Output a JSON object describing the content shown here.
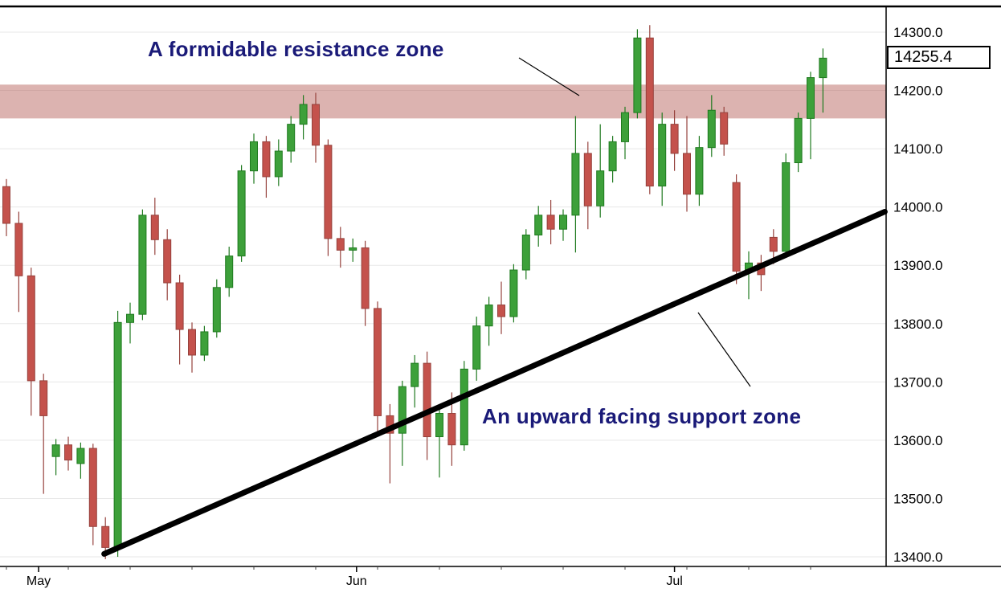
{
  "window": {
    "title": "Candlestick price chart with annotated resistance zone and support trendline"
  },
  "last_price_label": "14255.4",
  "annotations": {
    "resistance_label": "A formidable resistance zone",
    "support_label": "An upward facing support zone"
  },
  "colors": {
    "up": "#3da03a",
    "up_stroke": "#1f7a1f",
    "down": "#c4524c",
    "down_stroke": "#96423d",
    "resistance_band": "rgba(178,86,80,0.45)",
    "trendline": "#000000",
    "annotation_text": "#1a1a78",
    "grid": "#e7e7e7",
    "axis": "#000000"
  },
  "chart_data": {
    "type": "candlestick",
    "title": "",
    "xlabel": "",
    "ylabel": "",
    "x_unit": "daily candles, May through July",
    "y_axis_side": "right",
    "ylim": [
      13370,
      14345
    ],
    "grid": "horizontal-only",
    "y_ticks": [
      "14300.0",
      "14200.0",
      "14100.0",
      "14000.0",
      "13900.0",
      "13800.0",
      "13700.0",
      "13600.0",
      "13500.0",
      "13400.0"
    ],
    "x_ticks": [
      {
        "label": "May",
        "index": 2.6
      },
      {
        "label": "Jun",
        "index": 28.3
      },
      {
        "label": "Jul",
        "index": 54
      }
    ],
    "last_price": 14255.4,
    "resistance_zone": {
      "top": 14210,
      "bottom": 14152
    },
    "support_trendline": {
      "start_index": 7.9,
      "start_price": 13405,
      "end_index": 71,
      "end_price": 13992
    },
    "candle_format": "[open, high, low, close]",
    "candles": [
      [
        14035,
        14048,
        13950,
        13972
      ],
      [
        13972,
        13992,
        13820,
        13882
      ],
      [
        13882,
        13896,
        13642,
        13702
      ],
      [
        13702,
        13714,
        13508,
        13642
      ],
      [
        13572,
        13602,
        13540,
        13592
      ],
      [
        13592,
        13606,
        13548,
        13566
      ],
      [
        13560,
        13596,
        13534,
        13586
      ],
      [
        13586,
        13594,
        13420,
        13452
      ],
      [
        13452,
        13468,
        13396,
        13416
      ],
      [
        13416,
        13822,
        13400,
        13802
      ],
      [
        13802,
        13836,
        13766,
        13816
      ],
      [
        13816,
        13996,
        13806,
        13986
      ],
      [
        13986,
        14016,
        13918,
        13944
      ],
      [
        13944,
        13962,
        13840,
        13870
      ],
      [
        13870,
        13884,
        13730,
        13790
      ],
      [
        13790,
        13802,
        13716,
        13746
      ],
      [
        13746,
        13796,
        13736,
        13786
      ],
      [
        13786,
        13876,
        13776,
        13862
      ],
      [
        13862,
        13932,
        13846,
        13916
      ],
      [
        13916,
        14072,
        13906,
        14062
      ],
      [
        14062,
        14126,
        14040,
        14112
      ],
      [
        14112,
        14122,
        14016,
        14052
      ],
      [
        14052,
        14116,
        14036,
        14096
      ],
      [
        14096,
        14156,
        14076,
        14142
      ],
      [
        14142,
        14192,
        14116,
        14176
      ],
      [
        14176,
        14196,
        14076,
        14106
      ],
      [
        14106,
        14116,
        13916,
        13946
      ],
      [
        13946,
        13966,
        13896,
        13926
      ],
      [
        13926,
        13946,
        13906,
        13930
      ],
      [
        13930,
        13942,
        13796,
        13826
      ],
      [
        13826,
        13838,
        13606,
        13642
      ],
      [
        13642,
        13662,
        13526,
        13612
      ],
      [
        13612,
        13702,
        13556,
        13692
      ],
      [
        13692,
        13746,
        13656,
        13732
      ],
      [
        13732,
        13752,
        13566,
        13606
      ],
      [
        13606,
        13656,
        13536,
        13646
      ],
      [
        13646,
        13682,
        13556,
        13592
      ],
      [
        13592,
        13736,
        13582,
        13722
      ],
      [
        13722,
        13812,
        13702,
        13796
      ],
      [
        13796,
        13846,
        13762,
        13832
      ],
      [
        13832,
        13872,
        13782,
        13812
      ],
      [
        13812,
        13902,
        13802,
        13892
      ],
      [
        13892,
        13962,
        13876,
        13952
      ],
      [
        13952,
        14002,
        13932,
        13986
      ],
      [
        13986,
        14012,
        13936,
        13962
      ],
      [
        13962,
        13996,
        13942,
        13986
      ],
      [
        13986,
        14156,
        13922,
        14092
      ],
      [
        14092,
        14112,
        13962,
        14002
      ],
      [
        14002,
        14142,
        13982,
        14062
      ],
      [
        14062,
        14122,
        14042,
        14112
      ],
      [
        14112,
        14172,
        14082,
        14162
      ],
      [
        14162,
        14305,
        14152,
        14290
      ],
      [
        14290,
        14312,
        14022,
        14036
      ],
      [
        14036,
        14162,
        14002,
        14142
      ],
      [
        14142,
        14166,
        14062,
        14092
      ],
      [
        14092,
        14156,
        13992,
        14022
      ],
      [
        14022,
        14122,
        14002,
        14102
      ],
      [
        14102,
        14192,
        14086,
        14166
      ],
      [
        14162,
        14172,
        14088,
        14108
      ],
      [
        14042,
        14056,
        13868,
        13890
      ],
      [
        13890,
        13924,
        13842,
        13904
      ],
      [
        13904,
        13918,
        13856,
        13884
      ],
      [
        13948,
        13962,
        13902,
        13924
      ],
      [
        13924,
        14092,
        13916,
        14076
      ],
      [
        14076,
        14162,
        14060,
        14152
      ],
      [
        14152,
        14232,
        14082,
        14222
      ],
      [
        14222,
        14272,
        14162,
        14255.4
      ]
    ]
  }
}
